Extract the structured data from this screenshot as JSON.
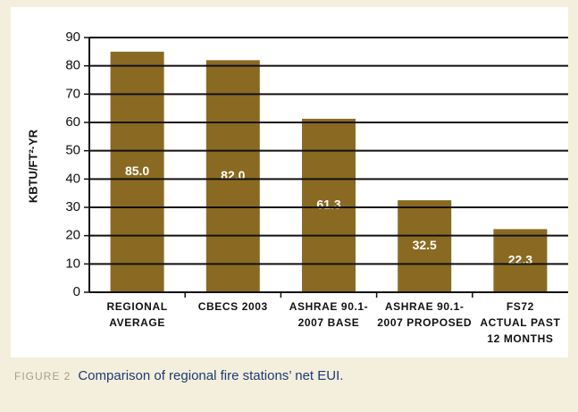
{
  "chart_data": {
    "type": "bar",
    "ylabel": "KBTU/FT²·YR",
    "categories": [
      [
        "REGIONAL",
        "AVERAGE"
      ],
      [
        "CBECS 2003"
      ],
      [
        "ASHRAE 90.1-",
        "2007 BASE"
      ],
      [
        "ASHRAE 90.1-",
        "2007 PROPOSED"
      ],
      [
        "FS72",
        "ACTUAL PAST",
        "12 MONTHS"
      ]
    ],
    "values": [
      85,
      82,
      61.3,
      32.5,
      22.3
    ],
    "value_labels": [
      "85.0",
      "82.0",
      "61.3",
      "32.5",
      "22.3"
    ],
    "color": "#8a6a22",
    "ylim": [
      0,
      90
    ],
    "yticks": [
      0,
      10,
      20,
      30,
      40,
      50,
      60,
      70,
      80,
      90
    ],
    "grid": true,
    "caption_label": "FIGURE 2",
    "caption": "Comparison of regional fire stations’ net EUI."
  }
}
